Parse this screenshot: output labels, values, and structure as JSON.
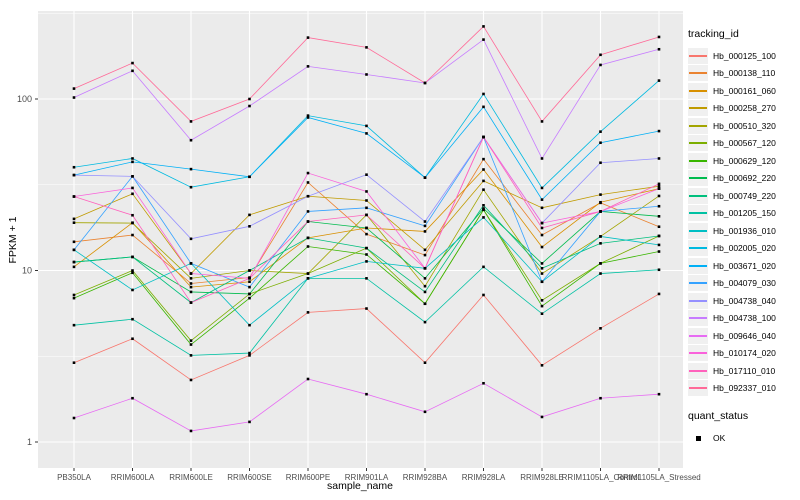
{
  "chart_data": {
    "type": "line",
    "title": "",
    "xlabel": "sample_name",
    "ylabel": "FPKM + 1",
    "y_scale": "log10",
    "y_ticks": [
      1,
      10,
      100
    ],
    "y_minor_ticks": [
      3.162,
      31.623,
      316.228
    ],
    "ylim": [
      0.75,
      330
    ],
    "grid": true,
    "legend_position": "right",
    "panel_background": "#EBEBEB",
    "grid_color": "#FFFFFF",
    "axis_text_color": "#4D4D4D",
    "marker": "black-square",
    "categories": [
      "PB350LA",
      "RRIM600LA",
      "RRIM600LE",
      "RRIM600SE",
      "RRIM600PE",
      "RRIM901LA",
      "RRIM928BA",
      "RRIM928LA",
      "RRIM928LE",
      "RRIM1105LA_Control",
      "RRIM1105LA_Stressed"
    ],
    "series": [
      {
        "name": "Hb_000125_100",
        "color": "#F8766D",
        "values": [
          2.9,
          4.0,
          2.3,
          3.2,
          5.7,
          6.0,
          2.9,
          7.2,
          2.8,
          4.6,
          7.3
        ]
      },
      {
        "name": "Hb_000138_110",
        "color": "#EA8331",
        "values": [
          14.7,
          16.1,
          8.4,
          9.1,
          32.6,
          16.3,
          12.3,
          44.6,
          16.1,
          24.8,
          18.0
        ]
      },
      {
        "name": "Hb_000161_060",
        "color": "#D89000",
        "values": [
          10.5,
          19.0,
          8.0,
          8.6,
          15.5,
          17.7,
          16.9,
          38.8,
          13.7,
          25.0,
          30.0
        ]
      },
      {
        "name": "Hb_000258_270",
        "color": "#C09B00",
        "values": [
          20.0,
          28.0,
          9.6,
          21.1,
          27.1,
          25.6,
          13.2,
          33.3,
          23.2,
          27.7,
          31.0
        ]
      },
      {
        "name": "Hb_000510_320",
        "color": "#A3A500",
        "values": [
          19.0,
          18.9,
          9.0,
          10.0,
          9.6,
          21.1,
          8.1,
          29.6,
          9.6,
          15.8,
          27.2
        ]
      },
      {
        "name": "Hb_000567_120",
        "color": "#7CAE00",
        "values": [
          7.2,
          10.0,
          3.9,
          7.3,
          9.6,
          13.5,
          6.4,
          22.6,
          6.7,
          11.0,
          15.9
        ]
      },
      {
        "name": "Hb_000629_120",
        "color": "#39B600",
        "values": [
          6.9,
          9.7,
          3.7,
          6.9,
          13.8,
          12.4,
          6.4,
          22.6,
          6.2,
          11.0,
          12.9
        ]
      },
      {
        "name": "Hb_000692_220",
        "color": "#00BB4E",
        "values": [
          11.2,
          12.0,
          7.5,
          7.3,
          19.3,
          17.7,
          9.0,
          23.0,
          11.0,
          22.1,
          20.7
        ]
      },
      {
        "name": "Hb_000749_220",
        "color": "#00BF7D",
        "values": [
          11.2,
          12.0,
          6.5,
          10.0,
          15.5,
          13.5,
          7.5,
          24.0,
          10.3,
          14.4,
          15.9
        ]
      },
      {
        "name": "Hb_001205_150",
        "color": "#00C1A3",
        "values": [
          4.8,
          5.2,
          3.2,
          3.3,
          9.0,
          9.0,
          5.0,
          10.5,
          5.6,
          9.6,
          10.1
        ]
      },
      {
        "name": "Hb_001936_010",
        "color": "#00BFC4",
        "values": [
          13.2,
          7.7,
          11.0,
          4.8,
          9.0,
          11.3,
          10.3,
          20.4,
          8.6,
          15.8,
          14.1
        ]
      },
      {
        "name": "Hb_002005_020",
        "color": "#00BAE0",
        "values": [
          40.0,
          45.0,
          30.6,
          35.2,
          80.0,
          69.7,
          34.8,
          107.0,
          30.3,
          64.5,
          128.0
        ]
      },
      {
        "name": "Hb_003671_020",
        "color": "#00B0F6",
        "values": [
          36.0,
          43.0,
          39.0,
          35.2,
          78.0,
          63.0,
          34.8,
          90.0,
          25.9,
          55.6,
          65.0
        ]
      },
      {
        "name": "Hb_004079_030",
        "color": "#35A2FF",
        "values": [
          13.2,
          35.4,
          11.0,
          8.0,
          22.1,
          23.2,
          18.2,
          60.0,
          8.6,
          22.1,
          23.7
        ]
      },
      {
        "name": "Hb_004738_040",
        "color": "#9590FF",
        "values": [
          36.0,
          35.4,
          15.3,
          18.1,
          27.1,
          36.2,
          19.3,
          60.0,
          18.9,
          42.5,
          45.0
        ]
      },
      {
        "name": "Hb_004738_100",
        "color": "#C77CFF",
        "values": [
          102,
          146,
          57.5,
          91,
          155,
          139,
          124,
          222,
          45,
          158,
          195
        ]
      },
      {
        "name": "Hb_009646_040",
        "color": "#E76BF3",
        "values": [
          1.38,
          1.8,
          1.16,
          1.31,
          2.33,
          1.9,
          1.5,
          2.2,
          1.4,
          1.8,
          1.9
        ]
      },
      {
        "name": "Hb_010174_020",
        "color": "#FA62DB",
        "values": [
          27.0,
          30.3,
          9.6,
          9.0,
          37.0,
          28.9,
          10.3,
          60.0,
          18.9,
          22.1,
          30.0
        ]
      },
      {
        "name": "Hb_017110_010",
        "color": "#FF62BC",
        "values": [
          27.0,
          21.0,
          6.5,
          9.0,
          19.3,
          21.1,
          10.3,
          60.0,
          17.7,
          22.1,
          32.0
        ]
      },
      {
        "name": "Hb_092337_010",
        "color": "#FF6A98",
        "values": [
          115,
          162,
          74,
          100,
          228,
          200,
          124,
          265,
          74,
          181,
          230
        ]
      }
    ],
    "legend": {
      "color_title": "tracking_id",
      "shape_title": "quant_status",
      "shape_items": [
        {
          "label": "OK",
          "marker": "black-square"
        }
      ]
    }
  }
}
